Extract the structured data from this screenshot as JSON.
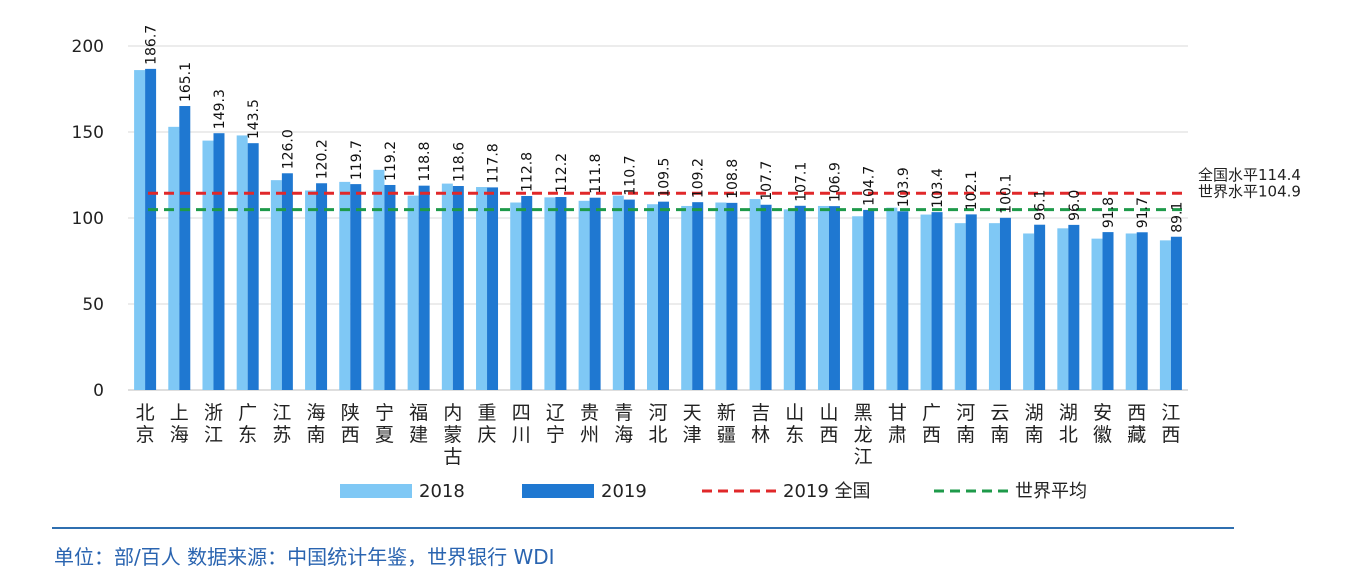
{
  "chart_data": {
    "type": "bar",
    "categories": [
      "北京",
      "上海",
      "浙江",
      "广东",
      "江苏",
      "海南",
      "陕西",
      "宁夏",
      "福建",
      "内蒙古",
      "重庆",
      "四川",
      "辽宁",
      "贵州",
      "青海",
      "河北",
      "天津",
      "新疆",
      "吉林",
      "山东",
      "山西",
      "黑龙江",
      "甘肃",
      "广西",
      "河南",
      "云南",
      "湖南",
      "湖北",
      "安徽",
      "西藏",
      "江西"
    ],
    "series": [
      {
        "name": "2018",
        "color": "#7fc8f5",
        "values": [
          186,
          153,
          145,
          148,
          122,
          116,
          121,
          128,
          113,
          120,
          118,
          109,
          112,
          110,
          113,
          108,
          107,
          109,
          111,
          105,
          107,
          101,
          106,
          102,
          97,
          97,
          91,
          94,
          88,
          91,
          87
        ]
      },
      {
        "name": "2019",
        "color": "#1f78d1",
        "values": [
          186.7,
          165.1,
          149.3,
          143.5,
          126.0,
          120.2,
          119.7,
          119.2,
          118.8,
          118.6,
          117.8,
          112.8,
          112.2,
          111.8,
          110.7,
          109.5,
          109.2,
          108.8,
          107.7,
          107.1,
          106.9,
          104.7,
          103.9,
          103.4,
          102.1,
          100.1,
          96.1,
          96.0,
          91.8,
          91.7,
          89.1
        ]
      }
    ],
    "data_labels": [
      "186.7",
      "165.1",
      "149.3",
      "143.5",
      "126.0",
      "120.2",
      "119.7",
      "119.2",
      "118.8",
      "118.6",
      "117.8",
      "112.8",
      "112.2",
      "111.8",
      "110.7",
      "109.5",
      "109.2",
      "108.8",
      "107.7",
      "107.1",
      "106.9",
      "104.7",
      "103.9",
      "103.4",
      "102.1",
      "100.1",
      "96.1",
      "96.0",
      "91.8",
      "91.7",
      "89.1"
    ],
    "reference_lines": [
      {
        "name": "2019 全国",
        "value": 114.4,
        "label": "全国水平114.4",
        "color": "#e0282a"
      },
      {
        "name": "世界平均",
        "value": 104.9,
        "label": "世界水平104.9",
        "color": "#1e9a4a"
      }
    ],
    "ylim": [
      0,
      200
    ],
    "yticks": [
      0,
      50,
      100,
      150,
      200
    ],
    "grid": true,
    "legend": "bottom"
  },
  "footer": {
    "source_note": "单位：部/百人  数据来源：中国统计年鉴，世界银行 WDI"
  }
}
